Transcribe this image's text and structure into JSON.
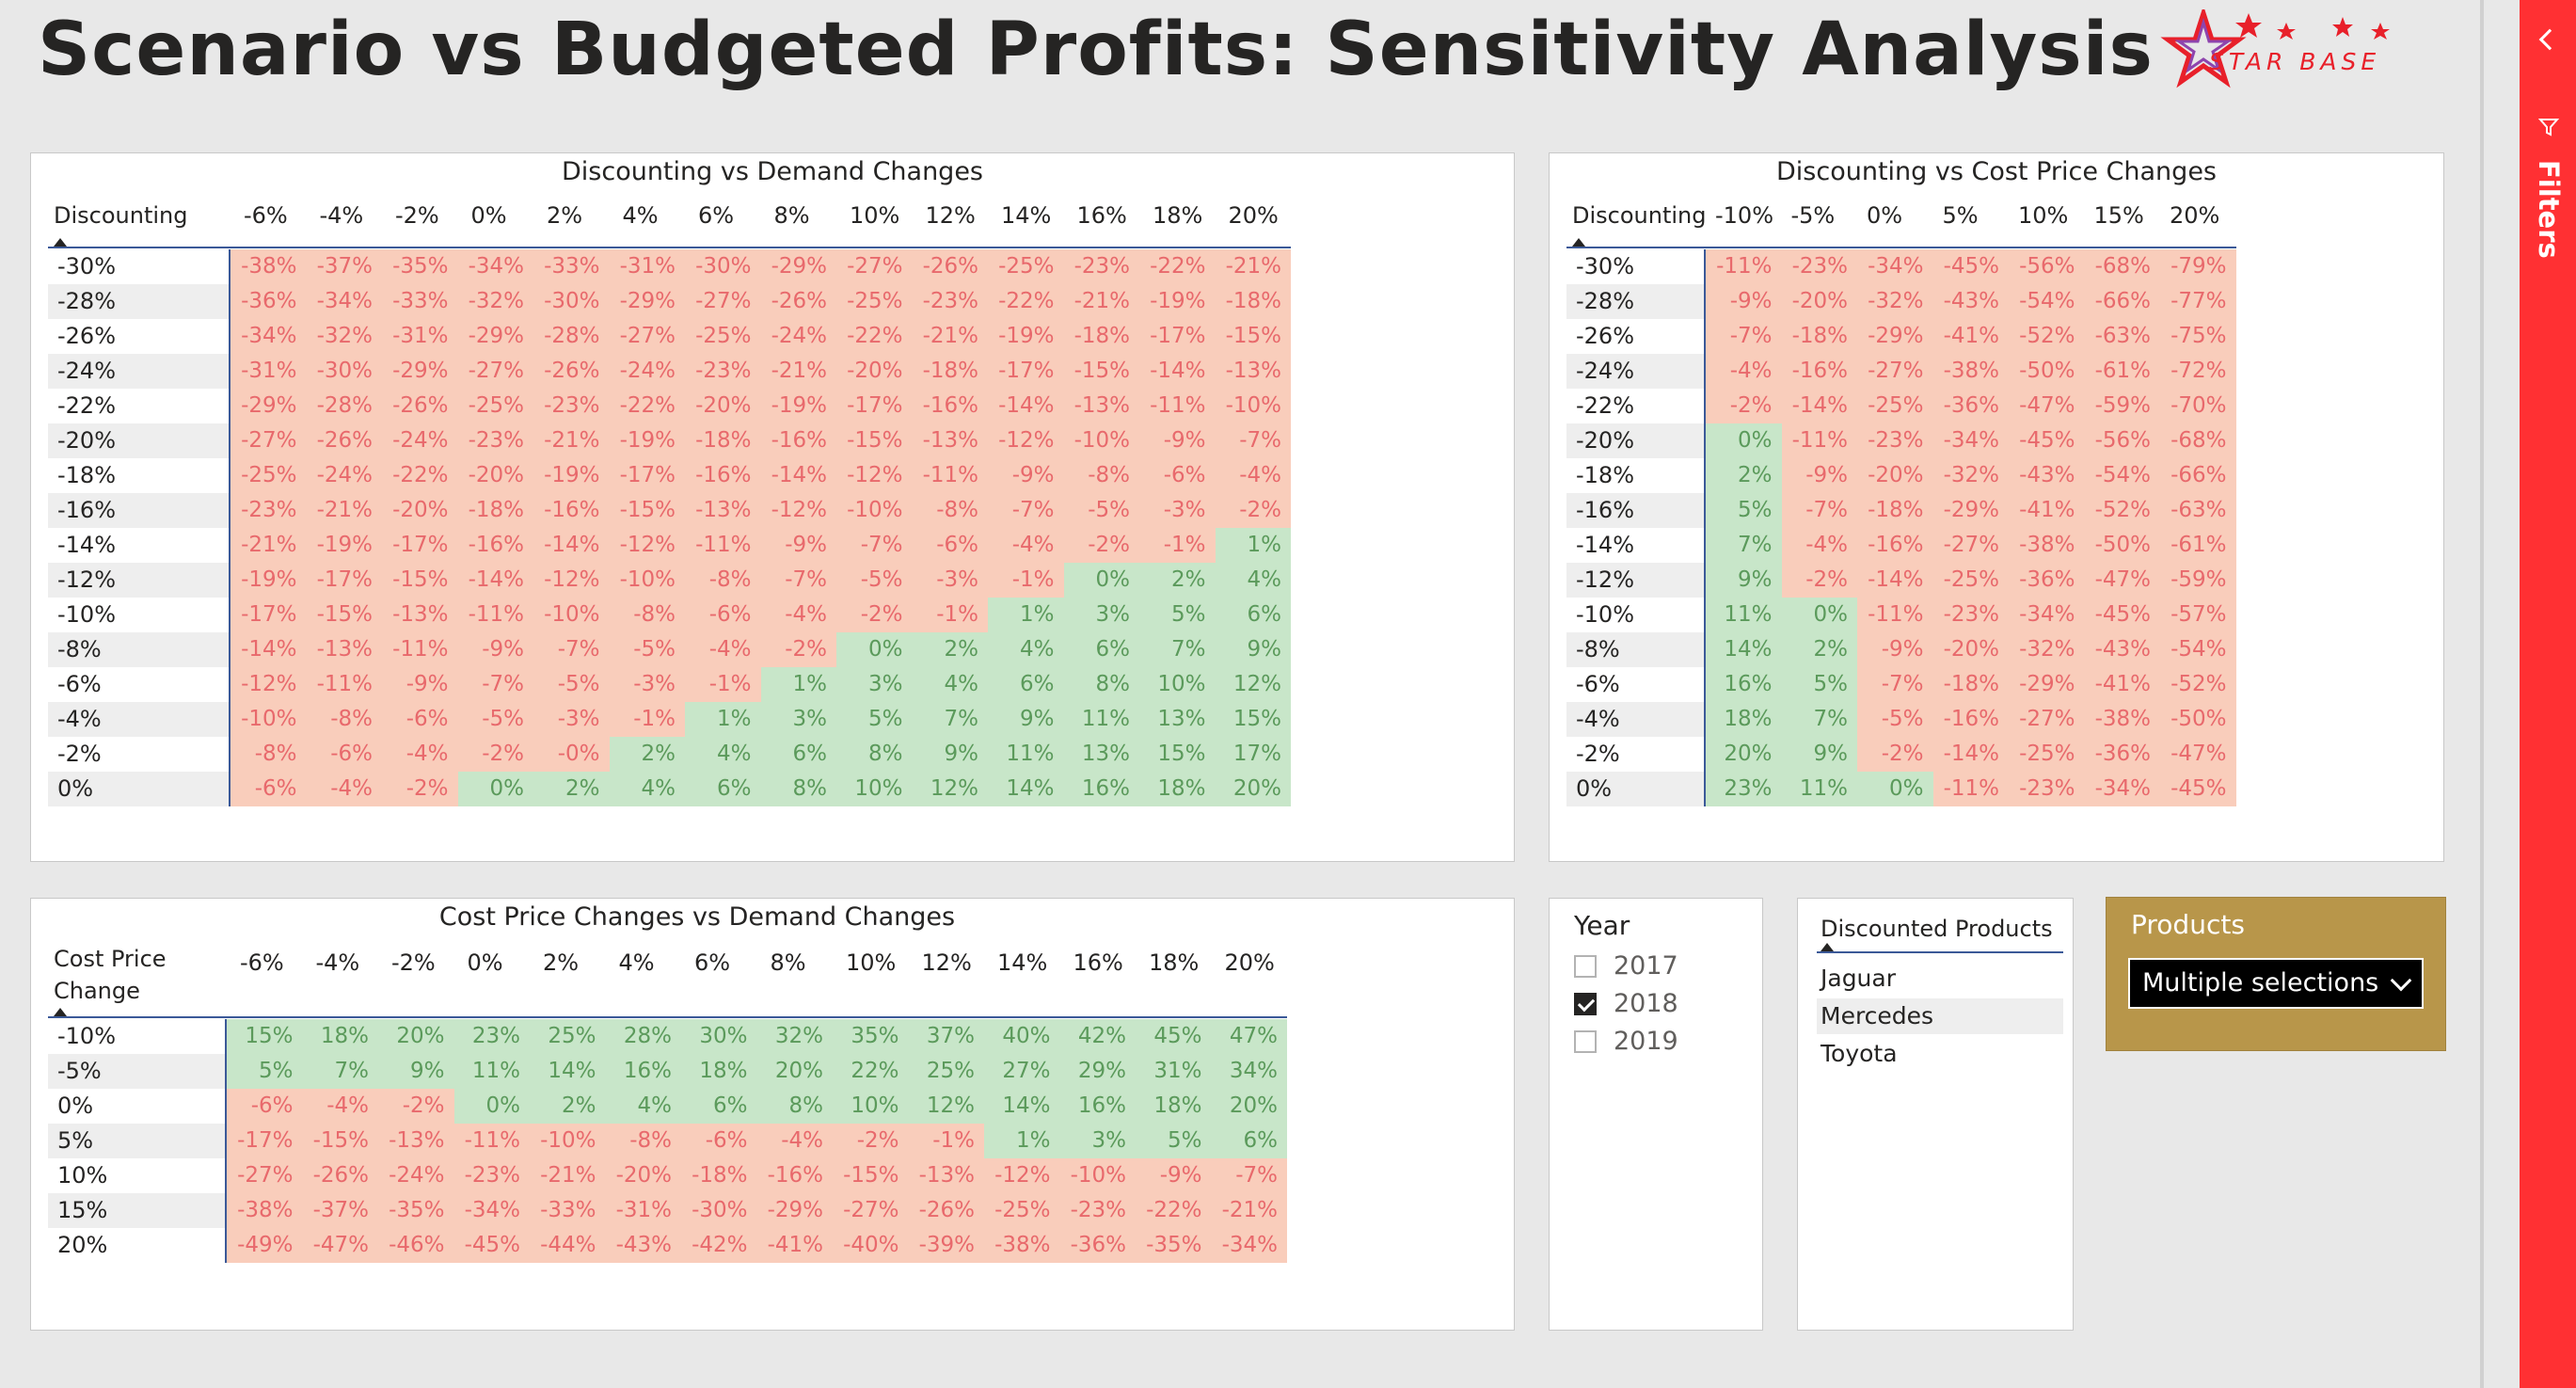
{
  "title": "Scenario vs Budgeted Profits: Sensitivity Analysis",
  "logo": {
    "text": "STAR BASE"
  },
  "matrix1": {
    "title": "Discounting vs Demand Changes",
    "corner": "Discounting",
    "cols": [
      "-6%",
      "-4%",
      "-2%",
      "0%",
      "2%",
      "4%",
      "6%",
      "8%",
      "10%",
      "12%",
      "14%",
      "16%",
      "18%",
      "20%"
    ],
    "rows": [
      {
        "label": "-30%",
        "values": [
          "-38%",
          "-37%",
          "-35%",
          "-34%",
          "-33%",
          "-31%",
          "-30%",
          "-29%",
          "-27%",
          "-26%",
          "-25%",
          "-23%",
          "-22%",
          "-21%"
        ]
      },
      {
        "label": "-28%",
        "values": [
          "-36%",
          "-34%",
          "-33%",
          "-32%",
          "-30%",
          "-29%",
          "-27%",
          "-26%",
          "-25%",
          "-23%",
          "-22%",
          "-21%",
          "-19%",
          "-18%"
        ]
      },
      {
        "label": "-26%",
        "values": [
          "-34%",
          "-32%",
          "-31%",
          "-29%",
          "-28%",
          "-27%",
          "-25%",
          "-24%",
          "-22%",
          "-21%",
          "-19%",
          "-18%",
          "-17%",
          "-15%"
        ]
      },
      {
        "label": "-24%",
        "values": [
          "-31%",
          "-30%",
          "-29%",
          "-27%",
          "-26%",
          "-24%",
          "-23%",
          "-21%",
          "-20%",
          "-18%",
          "-17%",
          "-15%",
          "-14%",
          "-13%"
        ]
      },
      {
        "label": "-22%",
        "values": [
          "-29%",
          "-28%",
          "-26%",
          "-25%",
          "-23%",
          "-22%",
          "-20%",
          "-19%",
          "-17%",
          "-16%",
          "-14%",
          "-13%",
          "-11%",
          "-10%"
        ]
      },
      {
        "label": "-20%",
        "values": [
          "-27%",
          "-26%",
          "-24%",
          "-23%",
          "-21%",
          "-19%",
          "-18%",
          "-16%",
          "-15%",
          "-13%",
          "-12%",
          "-10%",
          "-9%",
          "-7%"
        ]
      },
      {
        "label": "-18%",
        "values": [
          "-25%",
          "-24%",
          "-22%",
          "-20%",
          "-19%",
          "-17%",
          "-16%",
          "-14%",
          "-12%",
          "-11%",
          "-9%",
          "-8%",
          "-6%",
          "-4%"
        ]
      },
      {
        "label": "-16%",
        "values": [
          "-23%",
          "-21%",
          "-20%",
          "-18%",
          "-16%",
          "-15%",
          "-13%",
          "-12%",
          "-10%",
          "-8%",
          "-7%",
          "-5%",
          "-3%",
          "-2%"
        ]
      },
      {
        "label": "-14%",
        "values": [
          "-21%",
          "-19%",
          "-17%",
          "-16%",
          "-14%",
          "-12%",
          "-11%",
          "-9%",
          "-7%",
          "-6%",
          "-4%",
          "-2%",
          "-1%",
          "1%"
        ]
      },
      {
        "label": "-12%",
        "values": [
          "-19%",
          "-17%",
          "-15%",
          "-14%",
          "-12%",
          "-10%",
          "-8%",
          "-7%",
          "-5%",
          "-3%",
          "-1%",
          "0%",
          "2%",
          "4%"
        ]
      },
      {
        "label": "-10%",
        "values": [
          "-17%",
          "-15%",
          "-13%",
          "-11%",
          "-10%",
          "-8%",
          "-6%",
          "-4%",
          "-2%",
          "-1%",
          "1%",
          "3%",
          "5%",
          "6%"
        ]
      },
      {
        "label": "-8%",
        "values": [
          "-14%",
          "-13%",
          "-11%",
          "-9%",
          "-7%",
          "-5%",
          "-4%",
          "-2%",
          "0%",
          "2%",
          "4%",
          "6%",
          "7%",
          "9%"
        ]
      },
      {
        "label": "-6%",
        "values": [
          "-12%",
          "-11%",
          "-9%",
          "-7%",
          "-5%",
          "-3%",
          "-1%",
          "1%",
          "3%",
          "4%",
          "6%",
          "8%",
          "10%",
          "12%"
        ]
      },
      {
        "label": "-4%",
        "values": [
          "-10%",
          "-8%",
          "-6%",
          "-5%",
          "-3%",
          "-1%",
          "1%",
          "3%",
          "5%",
          "7%",
          "9%",
          "11%",
          "13%",
          "15%"
        ]
      },
      {
        "label": "-2%",
        "values": [
          "-8%",
          "-6%",
          "-4%",
          "-2%",
          "-0%",
          "2%",
          "4%",
          "6%",
          "8%",
          "9%",
          "11%",
          "13%",
          "15%",
          "17%"
        ]
      },
      {
        "label": "0%",
        "values": [
          "-6%",
          "-4%",
          "-2%",
          "0%",
          "2%",
          "4%",
          "6%",
          "8%",
          "10%",
          "12%",
          "14%",
          "16%",
          "18%",
          "20%"
        ]
      }
    ]
  },
  "matrix2": {
    "title": "Discounting vs Cost Price Changes",
    "corner": "Discounting",
    "cols": [
      "-10%",
      "-5%",
      "0%",
      "5%",
      "10%",
      "15%",
      "20%"
    ],
    "rows": [
      {
        "label": "-30%",
        "values": [
          "-11%",
          "-23%",
          "-34%",
          "-45%",
          "-56%",
          "-68%",
          "-79%"
        ]
      },
      {
        "label": "-28%",
        "values": [
          "-9%",
          "-20%",
          "-32%",
          "-43%",
          "-54%",
          "-66%",
          "-77%"
        ]
      },
      {
        "label": "-26%",
        "values": [
          "-7%",
          "-18%",
          "-29%",
          "-41%",
          "-52%",
          "-63%",
          "-75%"
        ]
      },
      {
        "label": "-24%",
        "values": [
          "-4%",
          "-16%",
          "-27%",
          "-38%",
          "-50%",
          "-61%",
          "-72%"
        ]
      },
      {
        "label": "-22%",
        "values": [
          "-2%",
          "-14%",
          "-25%",
          "-36%",
          "-47%",
          "-59%",
          "-70%"
        ]
      },
      {
        "label": "-20%",
        "values": [
          "0%",
          "-11%",
          "-23%",
          "-34%",
          "-45%",
          "-56%",
          "-68%"
        ]
      },
      {
        "label": "-18%",
        "values": [
          "2%",
          "-9%",
          "-20%",
          "-32%",
          "-43%",
          "-54%",
          "-66%"
        ]
      },
      {
        "label": "-16%",
        "values": [
          "5%",
          "-7%",
          "-18%",
          "-29%",
          "-41%",
          "-52%",
          "-63%"
        ]
      },
      {
        "label": "-14%",
        "values": [
          "7%",
          "-4%",
          "-16%",
          "-27%",
          "-38%",
          "-50%",
          "-61%"
        ]
      },
      {
        "label": "-12%",
        "values": [
          "9%",
          "-2%",
          "-14%",
          "-25%",
          "-36%",
          "-47%",
          "-59%"
        ]
      },
      {
        "label": "-10%",
        "values": [
          "11%",
          "0%",
          "-11%",
          "-23%",
          "-34%",
          "-45%",
          "-57%"
        ]
      },
      {
        "label": "-8%",
        "values": [
          "14%",
          "2%",
          "-9%",
          "-20%",
          "-32%",
          "-43%",
          "-54%"
        ]
      },
      {
        "label": "-6%",
        "values": [
          "16%",
          "5%",
          "-7%",
          "-18%",
          "-29%",
          "-41%",
          "-52%"
        ]
      },
      {
        "label": "-4%",
        "values": [
          "18%",
          "7%",
          "-5%",
          "-16%",
          "-27%",
          "-38%",
          "-50%"
        ]
      },
      {
        "label": "-2%",
        "values": [
          "20%",
          "9%",
          "-2%",
          "-14%",
          "-25%",
          "-36%",
          "-47%"
        ]
      },
      {
        "label": "0%",
        "values": [
          "23%",
          "11%",
          "0%",
          "-11%",
          "-23%",
          "-34%",
          "-45%"
        ]
      }
    ]
  },
  "matrix3": {
    "title": "Cost Price Changes vs Demand Changes",
    "corner_line1": "Cost Price",
    "corner_line2": "Change",
    "cols": [
      "-6%",
      "-4%",
      "-2%",
      "0%",
      "2%",
      "4%",
      "6%",
      "8%",
      "10%",
      "12%",
      "14%",
      "16%",
      "18%",
      "20%"
    ],
    "rows": [
      {
        "label": "-10%",
        "values": [
          "15%",
          "18%",
          "20%",
          "23%",
          "25%",
          "28%",
          "30%",
          "32%",
          "35%",
          "37%",
          "40%",
          "42%",
          "45%",
          "47%"
        ]
      },
      {
        "label": "-5%",
        "values": [
          "5%",
          "7%",
          "9%",
          "11%",
          "14%",
          "16%",
          "18%",
          "20%",
          "22%",
          "25%",
          "27%",
          "29%",
          "31%",
          "34%"
        ]
      },
      {
        "label": "0%",
        "values": [
          "-6%",
          "-4%",
          "-2%",
          "0%",
          "2%",
          "4%",
          "6%",
          "8%",
          "10%",
          "12%",
          "14%",
          "16%",
          "18%",
          "20%"
        ]
      },
      {
        "label": "5%",
        "values": [
          "-17%",
          "-15%",
          "-13%",
          "-11%",
          "-10%",
          "-8%",
          "-6%",
          "-4%",
          "-2%",
          "-1%",
          "1%",
          "3%",
          "5%",
          "6%"
        ]
      },
      {
        "label": "10%",
        "values": [
          "-27%",
          "-26%",
          "-24%",
          "-23%",
          "-21%",
          "-20%",
          "-18%",
          "-16%",
          "-15%",
          "-13%",
          "-12%",
          "-10%",
          "-9%",
          "-7%"
        ]
      },
      {
        "label": "15%",
        "values": [
          "-38%",
          "-37%",
          "-35%",
          "-34%",
          "-33%",
          "-31%",
          "-30%",
          "-29%",
          "-27%",
          "-26%",
          "-25%",
          "-23%",
          "-22%",
          "-21%"
        ]
      },
      {
        "label": "20%",
        "values": [
          "-49%",
          "-47%",
          "-46%",
          "-45%",
          "-44%",
          "-43%",
          "-42%",
          "-41%",
          "-40%",
          "-39%",
          "-38%",
          "-36%",
          "-35%",
          "-34%"
        ]
      }
    ]
  },
  "year_slicer": {
    "title": "Year",
    "items": [
      {
        "label": "2017",
        "checked": false
      },
      {
        "label": "2018",
        "checked": true
      },
      {
        "label": "2019",
        "checked": false
      }
    ]
  },
  "discounted_products": {
    "header": "Discounted Products",
    "items": [
      {
        "label": "Jaguar",
        "selected": false
      },
      {
        "label": "Mercedes",
        "selected": true
      },
      {
        "label": "Toyota",
        "selected": false
      }
    ]
  },
  "products_slicer": {
    "title": "Products",
    "value": "Multiple selections"
  },
  "filters_pane": {
    "label": "Filters"
  },
  "colors": {
    "negative_bg": "#f9cdbb",
    "negative_text": "#e8696c",
    "positive_bg": "#c8e6c9",
    "positive_text": "#5b9a5b",
    "filters_red": "#ff3033",
    "products_gold": "#b8964a"
  }
}
